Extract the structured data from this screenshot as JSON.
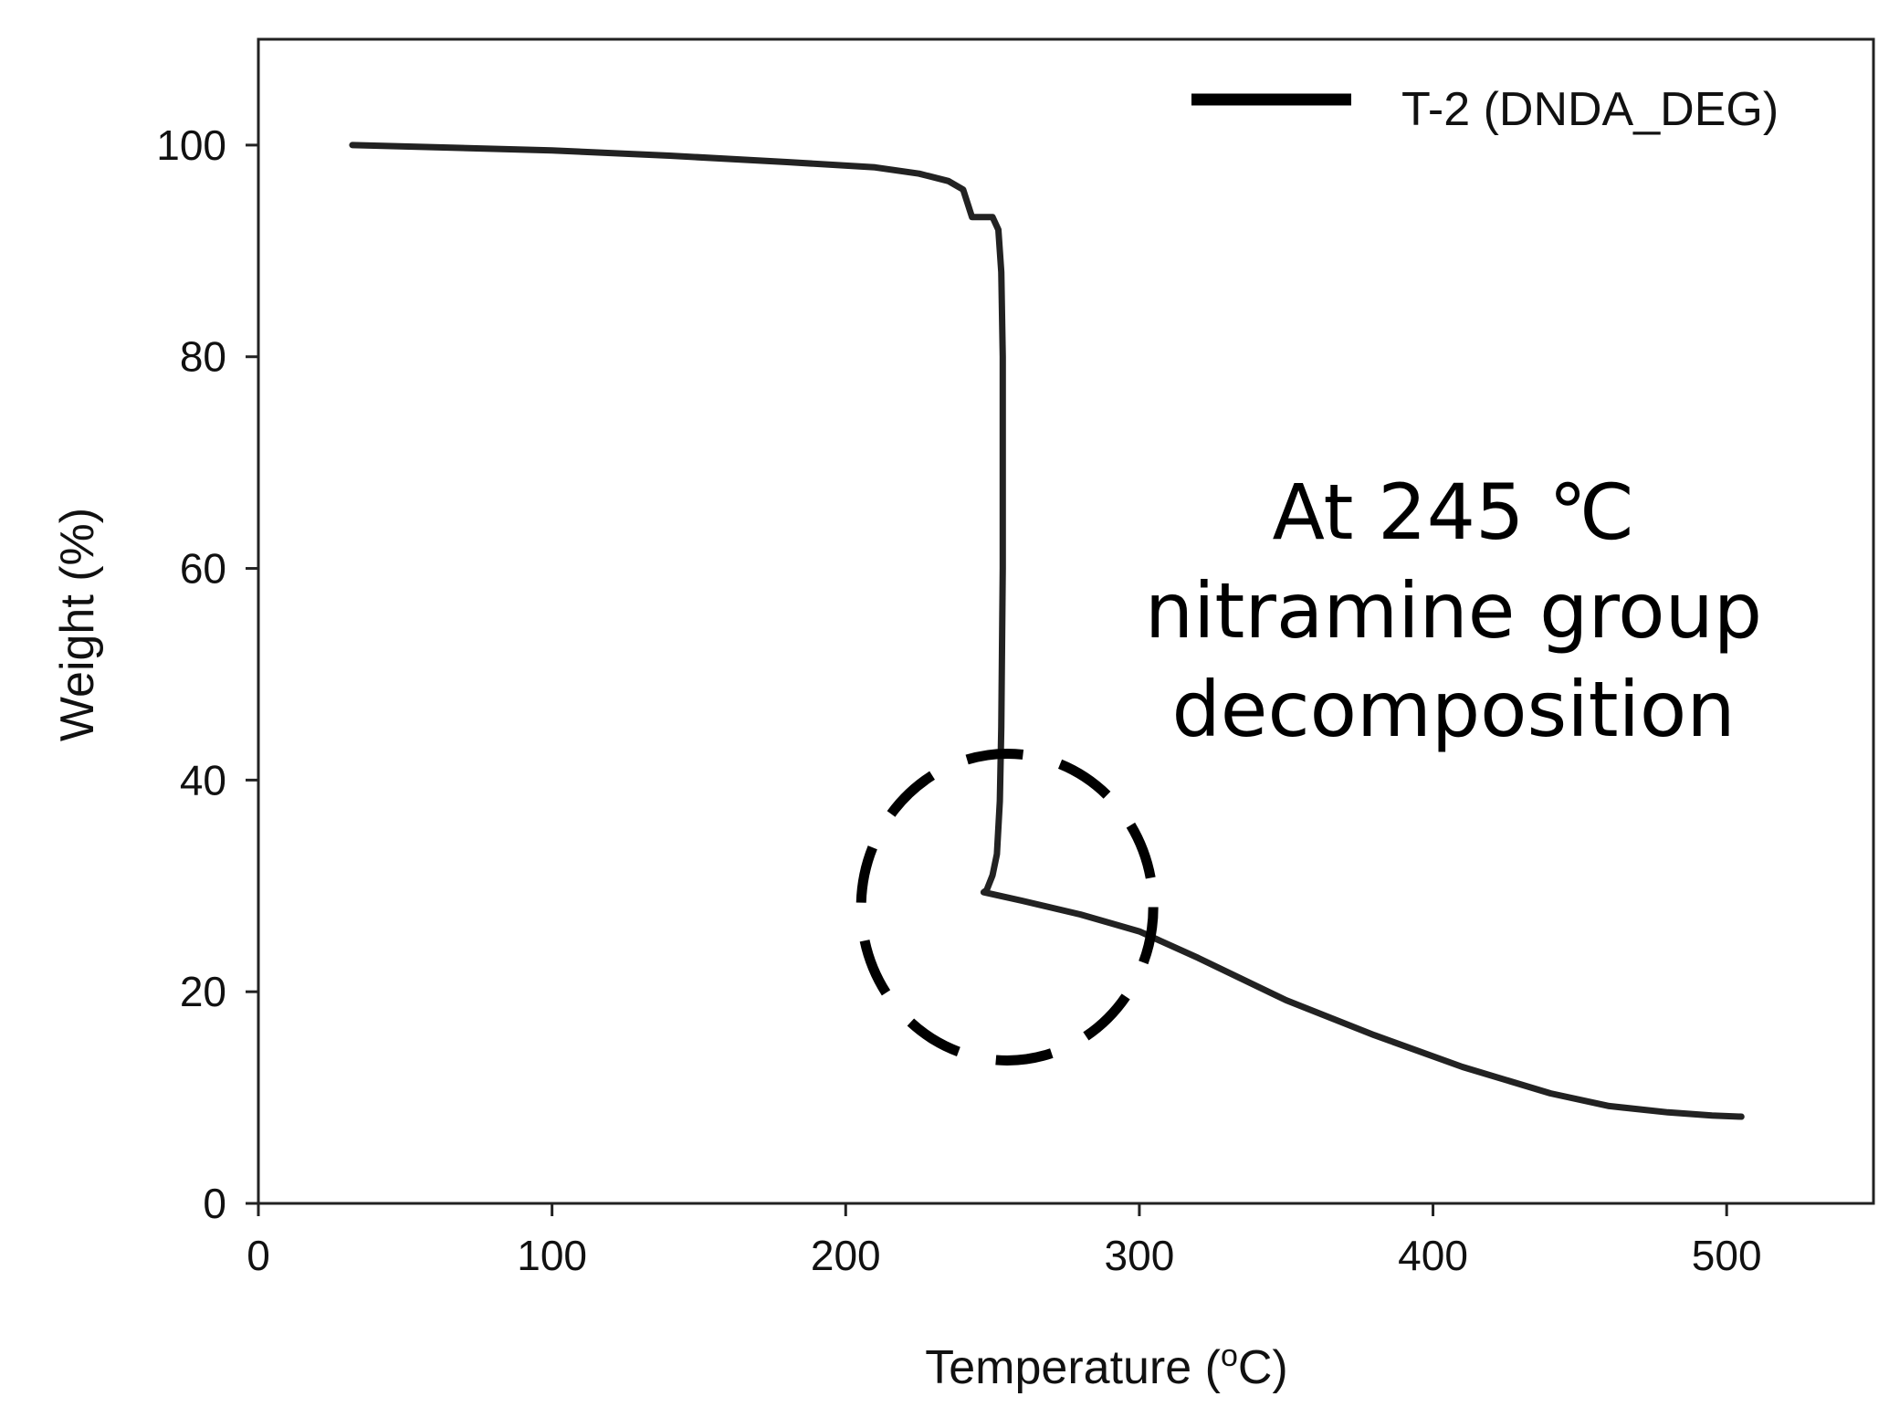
{
  "chart_data": {
    "type": "line",
    "title": "",
    "xlabel": "Temperature (°C)",
    "xlabel_parts": {
      "prefix": "Temperature (",
      "superscript": "o",
      "suffix": "C)"
    },
    "ylabel": "Weight (%)",
    "xlim": [
      0,
      550
    ],
    "ylim": [
      0,
      110
    ],
    "xticks": [
      0,
      100,
      200,
      300,
      400,
      500
    ],
    "yticks": [
      0,
      20,
      40,
      60,
      80,
      100
    ],
    "grid": false,
    "legend_position": "top-right",
    "series": [
      {
        "name": "T-2 (DNDA_DEG)",
        "color": "#222222",
        "x": [
          32,
          60,
          100,
          140,
          180,
          210,
          225,
          235,
          240,
          243,
          245,
          247,
          250,
          252,
          253,
          253.5,
          253.5,
          253,
          252.5,
          251.5,
          250,
          248,
          247,
          260,
          280,
          300,
          320,
          350,
          380,
          410,
          440,
          460,
          480,
          495,
          505
        ],
        "y": [
          100,
          99.8,
          99.5,
          99.0,
          98.4,
          97.9,
          97.3,
          96.6,
          95.8,
          93.2,
          93.2,
          93.2,
          93.2,
          92.0,
          88.0,
          80.0,
          60.0,
          45.0,
          38.0,
          33.0,
          31.0,
          29.6,
          29.4,
          28.6,
          27.3,
          25.7,
          23.2,
          19.2,
          15.9,
          12.9,
          10.4,
          9.2,
          8.6,
          8.3,
          8.2
        ]
      }
    ],
    "annotations": [
      {
        "text_lines": [
          "At 245 ℃",
          "nitramine group",
          "decomposition"
        ]
      }
    ],
    "highlight_circle": {
      "center": [
        255,
        28
      ],
      "style": "dashed"
    }
  }
}
